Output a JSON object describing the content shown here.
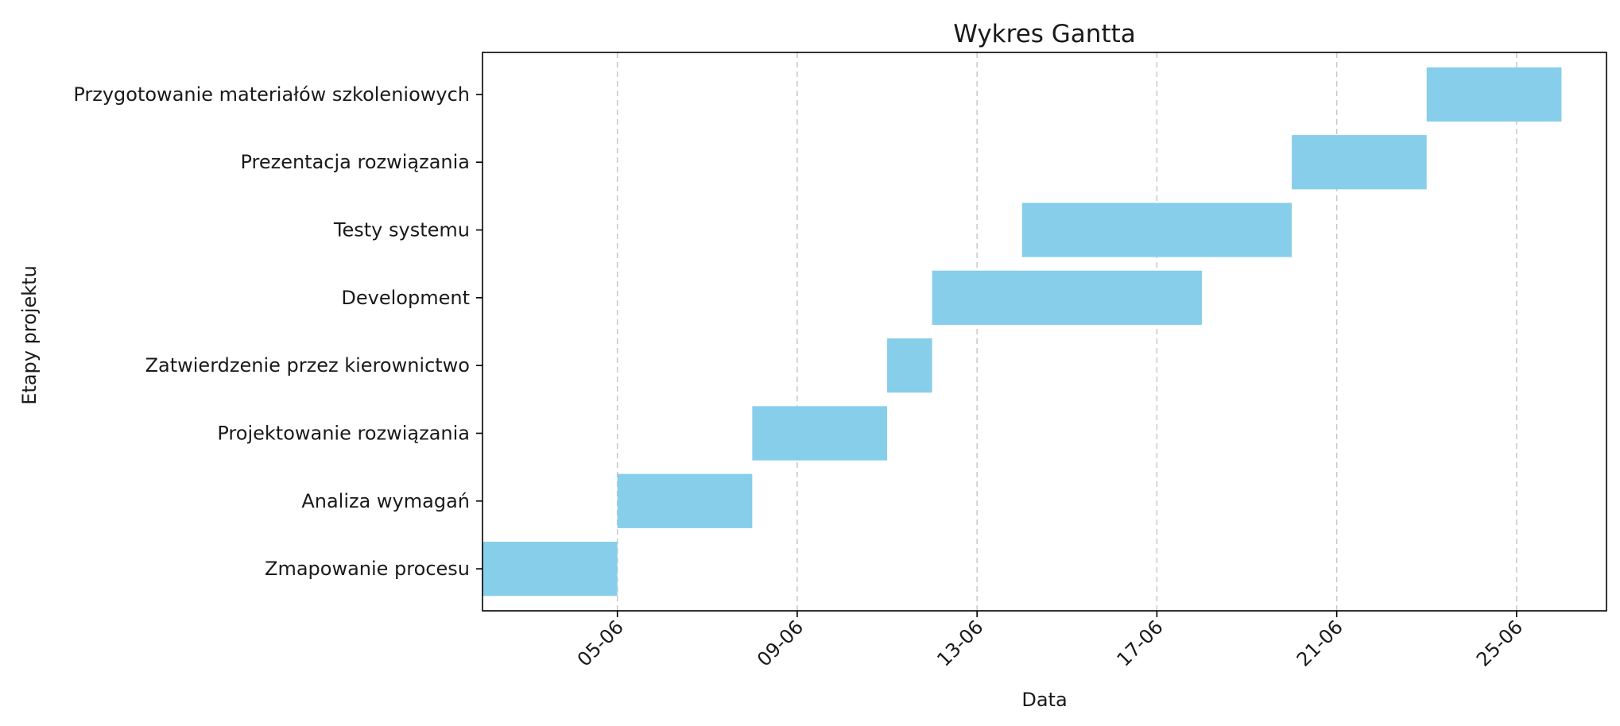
{
  "chart_data": {
    "type": "bar",
    "orientation": "horizontal",
    "title": "Wykres Gantta",
    "xlabel": "Data",
    "ylabel": "Etapy projektu",
    "bar_color": "#87ceeb",
    "grid": "x-dashed",
    "xlim": [
      "2024-06-02",
      "2024-06-27"
    ],
    "xticks": [
      {
        "date": "2024-06-05",
        "label": "05-06"
      },
      {
        "date": "2024-06-09",
        "label": "09-06"
      },
      {
        "date": "2024-06-13",
        "label": "13-06"
      },
      {
        "date": "2024-06-17",
        "label": "17-06"
      },
      {
        "date": "2024-06-21",
        "label": "21-06"
      },
      {
        "date": "2024-06-25",
        "label": "25-06"
      }
    ],
    "tasks": [
      {
        "name": "Zmapowanie procesu",
        "start": "2024-06-02",
        "end": "2024-06-05"
      },
      {
        "name": "Analiza wymagań",
        "start": "2024-06-05",
        "end": "2024-06-08"
      },
      {
        "name": "Projektowanie rozwiązania",
        "start": "2024-06-08",
        "end": "2024-06-11"
      },
      {
        "name": "Zatwierdzenie przez kierownictwo",
        "start": "2024-06-11",
        "end": "2024-06-12"
      },
      {
        "name": "Development",
        "start": "2024-06-12",
        "end": "2024-06-18"
      },
      {
        "name": "Testy systemu",
        "start": "2024-06-14",
        "end": "2024-06-20"
      },
      {
        "name": "Prezentacja rozwiązania",
        "start": "2024-06-20",
        "end": "2024-06-23"
      },
      {
        "name": "Przygotowanie materiałów szkoleniowych",
        "start": "2024-06-23",
        "end": "2024-06-26"
      }
    ]
  }
}
